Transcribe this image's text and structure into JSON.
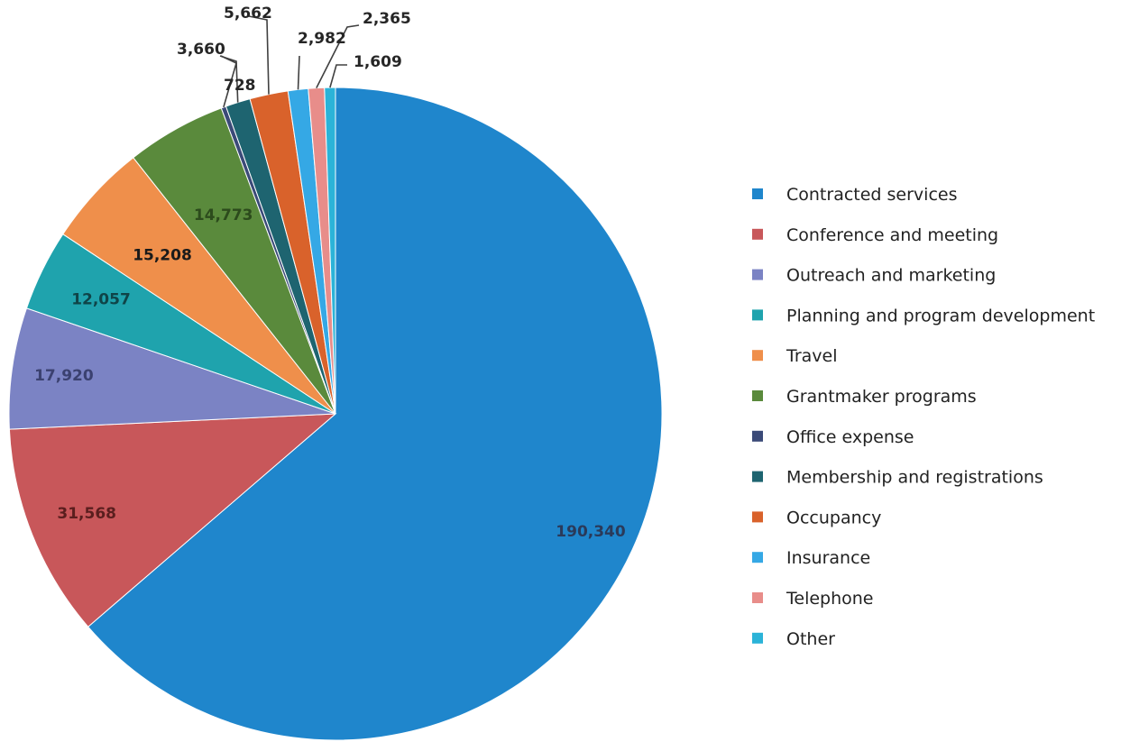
{
  "chart_data": {
    "type": "pie",
    "title": "",
    "legend_position": "right",
    "slices": [
      {
        "label": "Contracted services",
        "value": 190340,
        "display": "190,340",
        "color": "#1f86cc"
      },
      {
        "label": "Conference and meeting",
        "value": 31568,
        "display": "31,568",
        "color": "#c8575a"
      },
      {
        "label": "Outreach and marketing",
        "value": 17920,
        "display": "17,920",
        "color": "#7b83c4"
      },
      {
        "label": "Planning and program development",
        "value": 12057,
        "display": "12,057",
        "color": "#1fa3ad"
      },
      {
        "label": "Travel",
        "value": 15208,
        "display": "15,208",
        "color": "#ef8f4b"
      },
      {
        "label": "Grantmaker programs",
        "value": 14773,
        "display": "14,773",
        "color": "#5a8a3c"
      },
      {
        "label": "Office expense",
        "value": 728,
        "display": "728",
        "color": "#3b4a78"
      },
      {
        "label": "Membership and registrations",
        "value": 3660,
        "display": "3,660",
        "color": "#1e6470"
      },
      {
        "label": "Occupancy",
        "value": 5662,
        "display": "5,662",
        "color": "#d9622b"
      },
      {
        "label": "Insurance",
        "value": 2982,
        "display": "2,982",
        "color": "#35a8e5"
      },
      {
        "label": "Telephone",
        "value": 2365,
        "display": "2,365",
        "color": "#e88d8a"
      },
      {
        "label": "Other",
        "value": 1609,
        "display": "1,609",
        "color": "#2bb3d8"
      }
    ]
  }
}
